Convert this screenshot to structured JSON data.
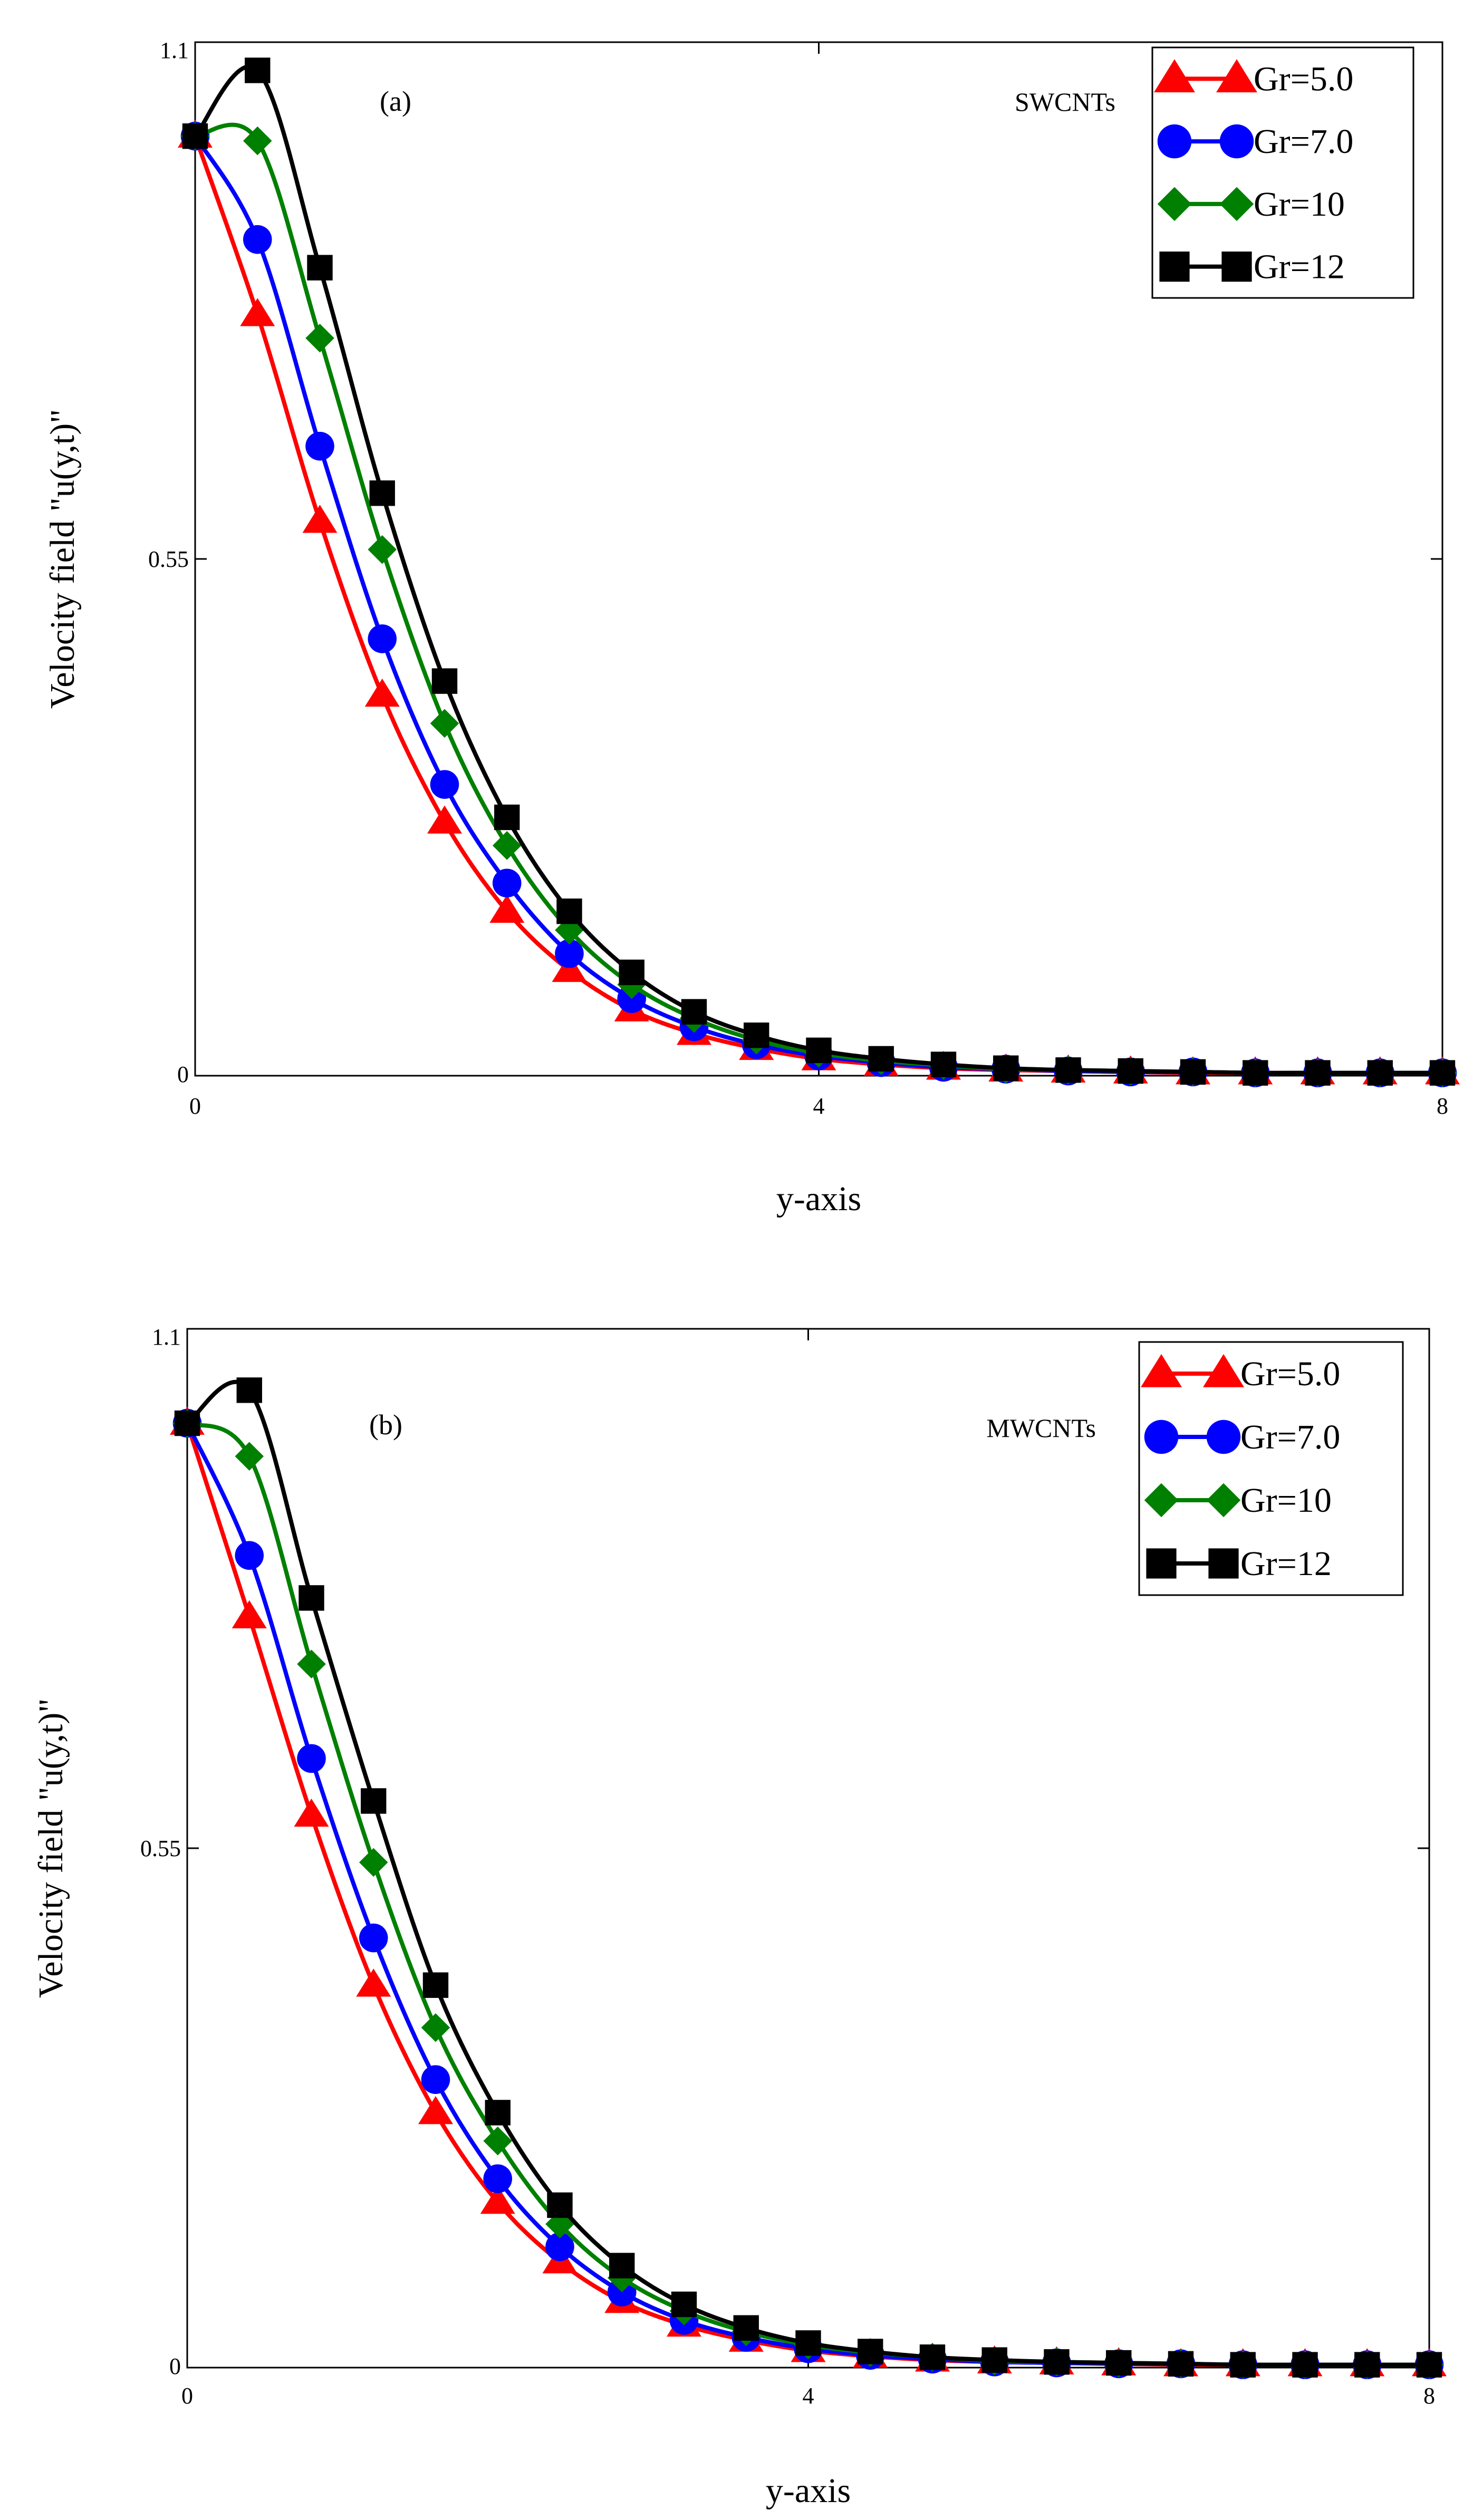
{
  "chart_data": [
    {
      "type": "line",
      "panel_label": "(a)",
      "annotation": "SWCNTs",
      "xlabel": "y-axis",
      "ylabel": "Velocity field \"u(y,t)\"",
      "xlim": [
        0,
        8
      ],
      "ylim": [
        0,
        1.1
      ],
      "x_ticks": [
        "0",
        "4",
        "8"
      ],
      "y_ticks": [
        "0",
        "0.55",
        "1.1"
      ],
      "x_tick_values": [
        0,
        4,
        8
      ],
      "y_tick_values": [
        0,
        0.55,
        1.1
      ],
      "legend_position": "top-right",
      "series": [
        {
          "name": "Gr=5.0",
          "color": "#ff0000",
          "marker": "triangle",
          "x": [
            0,
            0.4,
            0.8,
            1.2,
            1.6,
            2.0,
            2.4,
            2.8,
            3.2,
            3.6,
            4.0,
            4.4,
            4.8,
            5.2,
            5.6,
            6.0,
            6.4,
            6.8,
            7.2,
            7.6,
            8.0
          ],
          "y": [
            1.0,
            0.81,
            0.59,
            0.405,
            0.27,
            0.175,
            0.112,
            0.07,
            0.045,
            0.029,
            0.018,
            0.012,
            0.008,
            0.006,
            0.005,
            0.004,
            0.003,
            0.003,
            0.003,
            0.003,
            0.003
          ]
        },
        {
          "name": "Gr=7.0",
          "color": "#0000ff",
          "marker": "circle",
          "x": [
            0,
            0.4,
            0.8,
            1.2,
            1.6,
            2.0,
            2.4,
            2.8,
            3.2,
            3.6,
            4.0,
            4.4,
            4.8,
            5.2,
            5.6,
            6.0,
            6.4,
            6.8,
            7.2,
            7.6,
            8.0
          ],
          "y": [
            1.0,
            0.89,
            0.67,
            0.465,
            0.31,
            0.205,
            0.13,
            0.082,
            0.052,
            0.033,
            0.021,
            0.014,
            0.009,
            0.007,
            0.005,
            0.004,
            0.004,
            0.003,
            0.003,
            0.003,
            0.003
          ]
        },
        {
          "name": "Gr=10",
          "color": "#008000",
          "marker": "diamond",
          "x": [
            0,
            0.4,
            0.8,
            1.2,
            1.6,
            2.0,
            2.4,
            2.8,
            3.2,
            3.6,
            4.0,
            4.4,
            4.8,
            5.2,
            5.6,
            6.0,
            6.4,
            6.8,
            7.2,
            7.6,
            8.0
          ],
          "y": [
            1.0,
            0.995,
            0.785,
            0.56,
            0.375,
            0.245,
            0.155,
            0.097,
            0.061,
            0.038,
            0.024,
            0.016,
            0.011,
            0.007,
            0.006,
            0.005,
            0.004,
            0.003,
            0.003,
            0.003,
            0.003
          ]
        },
        {
          "name": "Gr=12",
          "color": "#000000",
          "marker": "square",
          "x": [
            0,
            0.4,
            0.8,
            1.2,
            1.6,
            2.0,
            2.4,
            2.8,
            3.2,
            3.6,
            4.0,
            4.4,
            4.8,
            5.2,
            5.6,
            6.0,
            6.4,
            6.8,
            7.2,
            7.6,
            8.0
          ],
          "y": [
            1.0,
            1.07,
            0.86,
            0.62,
            0.42,
            0.275,
            0.175,
            0.11,
            0.068,
            0.043,
            0.027,
            0.018,
            0.012,
            0.008,
            0.006,
            0.005,
            0.004,
            0.003,
            0.003,
            0.003,
            0.003
          ]
        }
      ]
    },
    {
      "type": "line",
      "panel_label": "(b)",
      "annotation": "MWCNTs",
      "xlabel": "y-axis",
      "ylabel": "Velocity field \"u(y,t)\"",
      "xlim": [
        0,
        8
      ],
      "ylim": [
        0,
        1.1
      ],
      "x_ticks": [
        "0",
        "4",
        "8"
      ],
      "y_ticks": [
        "0",
        "0.55",
        "1.1"
      ],
      "x_tick_values": [
        0,
        4,
        8
      ],
      "y_tick_values": [
        0,
        0.55,
        1.1
      ],
      "legend_position": "top-right",
      "series": [
        {
          "name": "Gr=5.0",
          "color": "#ff0000",
          "marker": "triangle",
          "x": [
            0,
            0.4,
            0.8,
            1.2,
            1.6,
            2.0,
            2.4,
            2.8,
            3.2,
            3.6,
            4.0,
            4.4,
            4.8,
            5.2,
            5.6,
            6.0,
            6.4,
            6.8,
            7.2,
            7.6,
            8.0
          ],
          "y": [
            1.0,
            0.795,
            0.585,
            0.405,
            0.27,
            0.175,
            0.112,
            0.07,
            0.045,
            0.029,
            0.018,
            0.012,
            0.008,
            0.006,
            0.005,
            0.004,
            0.003,
            0.003,
            0.003,
            0.003,
            0.003
          ]
        },
        {
          "name": "Gr=7.0",
          "color": "#0000ff",
          "marker": "circle",
          "x": [
            0,
            0.4,
            0.8,
            1.2,
            1.6,
            2.0,
            2.4,
            2.8,
            3.2,
            3.6,
            4.0,
            4.4,
            4.8,
            5.2,
            5.6,
            6.0,
            6.4,
            6.8,
            7.2,
            7.6,
            8.0
          ],
          "y": [
            1.0,
            0.86,
            0.645,
            0.455,
            0.305,
            0.2,
            0.128,
            0.08,
            0.05,
            0.032,
            0.02,
            0.013,
            0.009,
            0.006,
            0.005,
            0.004,
            0.004,
            0.003,
            0.003,
            0.003,
            0.003
          ]
        },
        {
          "name": "Gr=10",
          "color": "#008000",
          "marker": "diamond",
          "x": [
            0,
            0.4,
            0.8,
            1.2,
            1.6,
            2.0,
            2.4,
            2.8,
            3.2,
            3.6,
            4.0,
            4.4,
            4.8,
            5.2,
            5.6,
            6.0,
            6.4,
            6.8,
            7.2,
            7.6,
            8.0
          ],
          "y": [
            1.0,
            0.965,
            0.745,
            0.535,
            0.36,
            0.24,
            0.152,
            0.095,
            0.06,
            0.038,
            0.024,
            0.016,
            0.011,
            0.007,
            0.006,
            0.005,
            0.004,
            0.003,
            0.003,
            0.003,
            0.003
          ]
        },
        {
          "name": "Gr=12",
          "color": "#000000",
          "marker": "square",
          "x": [
            0,
            0.4,
            0.8,
            1.2,
            1.6,
            2.0,
            2.4,
            2.8,
            3.2,
            3.6,
            4.0,
            4.4,
            4.8,
            5.2,
            5.6,
            6.0,
            6.4,
            6.8,
            7.2,
            7.6,
            8.0
          ],
          "y": [
            1.0,
            1.035,
            0.815,
            0.6,
            0.405,
            0.27,
            0.172,
            0.108,
            0.067,
            0.042,
            0.026,
            0.017,
            0.011,
            0.008,
            0.006,
            0.005,
            0.004,
            0.003,
            0.003,
            0.003,
            0.003
          ]
        }
      ]
    }
  ]
}
